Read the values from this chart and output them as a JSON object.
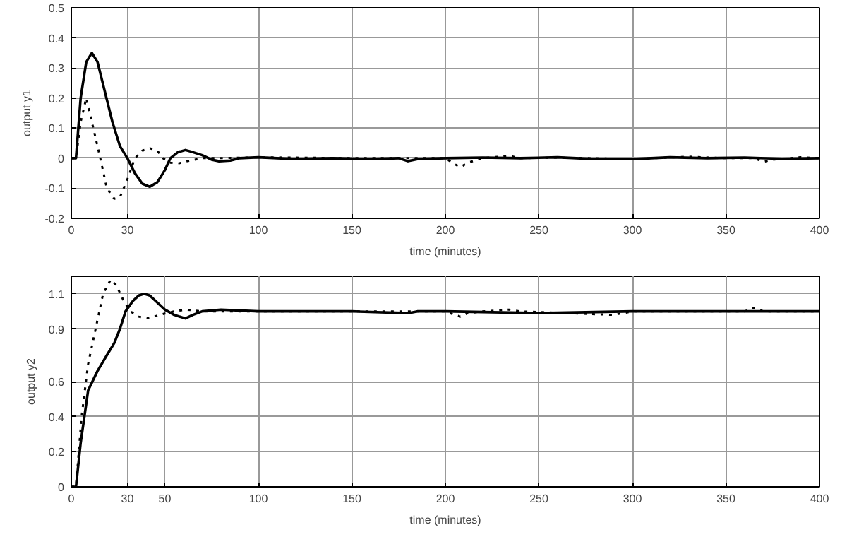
{
  "chart_data": [
    {
      "type": "line",
      "xlabel": "time (minutes)",
      "ylabel": "output y1",
      "xlim": [
        0,
        400
      ],
      "ylim": [
        -0.2,
        0.5
      ],
      "xticks": [
        0,
        30,
        100,
        150,
        200,
        250,
        300,
        350,
        400
      ],
      "yticks": [
        -0.2,
        -0.1,
        0,
        0.1,
        0.2,
        0.3,
        0.4,
        0.5
      ],
      "grid": true,
      "marker": "none",
      "series": [
        {
          "color": "#000000",
          "line_style": "solid",
          "x": [
            0,
            2.5,
            5,
            8,
            11,
            14,
            18,
            22,
            26,
            30,
            34,
            38,
            42,
            46,
            50,
            53,
            57,
            61,
            65,
            70,
            75,
            79,
            85,
            90,
            100,
            110,
            120,
            140,
            160,
            175,
            180,
            185,
            200,
            220,
            240,
            260,
            280,
            300,
            320,
            340,
            360,
            380,
            400
          ],
          "values": [
            0,
            0,
            0.2,
            0.32,
            0.35,
            0.32,
            0.22,
            0.12,
            0.04,
            0,
            -0.05,
            -0.085,
            -0.095,
            -0.08,
            -0.04,
            0,
            0.02,
            0.027,
            0.02,
            0.01,
            -0.005,
            -0.01,
            -0.008,
            0,
            0.003,
            0,
            -0.003,
            0,
            -0.003,
            0,
            -0.01,
            -0.003,
            0,
            0.002,
            0,
            0.003,
            -0.003,
            -0.003,
            0.003,
            0,
            0.002,
            -0.002,
            0
          ]
        },
        {
          "color": "#000000",
          "line_style": "dotted",
          "x": [
            0,
            2.5,
            5,
            8,
            11,
            15.5,
            19,
            23,
            26,
            30,
            34,
            38,
            42,
            46,
            49,
            53,
            57,
            62,
            70,
            80,
            100,
            150,
            200,
            205,
            208,
            212,
            220,
            234,
            240,
            260,
            300,
            330,
            350,
            365,
            370,
            375,
            390,
            400
          ],
          "values": [
            0,
            0,
            0.12,
            0.2,
            0.12,
            0,
            -0.1,
            -0.135,
            -0.13,
            -0.07,
            0,
            0.025,
            0.033,
            0.025,
            0,
            -0.015,
            -0.018,
            -0.01,
            0,
            0,
            0.003,
            0,
            0,
            -0.02,
            -0.03,
            -0.015,
            0,
            0.008,
            0,
            0.002,
            -0.003,
            0.005,
            0,
            0,
            -0.012,
            -0.005,
            0.003,
            0
          ]
        }
      ]
    },
    {
      "type": "line",
      "xlabel": "time (minutes)",
      "ylabel": "output y2",
      "xlim": [
        0,
        400
      ],
      "ylim": [
        0,
        1.2
      ],
      "xticks": [
        0,
        30,
        50,
        100,
        150,
        200,
        250,
        300,
        350,
        400
      ],
      "yticks": [
        0,
        0.2,
        0.4,
        0.6,
        0.9,
        1.1
      ],
      "grid": true,
      "marker": "none",
      "series": [
        {
          "color": "#000000",
          "line_style": "solid",
          "x": [
            0,
            2.5,
            5,
            9,
            14,
            19,
            23,
            26,
            29,
            33,
            36,
            39,
            42,
            45,
            50,
            55,
            61,
            65,
            70,
            80,
            100,
            150,
            180,
            185,
            200,
            250,
            300,
            350,
            400
          ],
          "values": [
            0,
            0,
            0.25,
            0.55,
            0.66,
            0.75,
            0.82,
            0.9,
            1.0,
            1.06,
            1.09,
            1.1,
            1.09,
            1.06,
            1.01,
            0.98,
            0.96,
            0.98,
            1.0,
            1.01,
            1.0,
            1.0,
            0.99,
            1.0,
            1.0,
            0.99,
            1.0,
            1.0,
            1.0
          ]
        },
        {
          "color": "#000000",
          "line_style": "dotted",
          "x": [
            0,
            2.5,
            5.5,
            9,
            13,
            17,
            21,
            24,
            28,
            31.6,
            36,
            41.6,
            47,
            55,
            61.5,
            70,
            80,
            100,
            150,
            200,
            205,
            208,
            212,
            220,
            234,
            240,
            290,
            300,
            320,
            360,
            365,
            370,
            400
          ],
          "values": [
            0,
            0,
            0.4,
            0.7,
            0.9,
            1.1,
            1.18,
            1.15,
            1.06,
            1.0,
            0.97,
            0.96,
            0.98,
            1.0,
            1.01,
            1.0,
            1.0,
            1.0,
            1.0,
            1.0,
            0.98,
            0.97,
            0.99,
            1.0,
            1.01,
            1.0,
            0.98,
            1.0,
            1.0,
            1.0,
            1.02,
            1.0,
            1.0
          ]
        }
      ]
    }
  ]
}
